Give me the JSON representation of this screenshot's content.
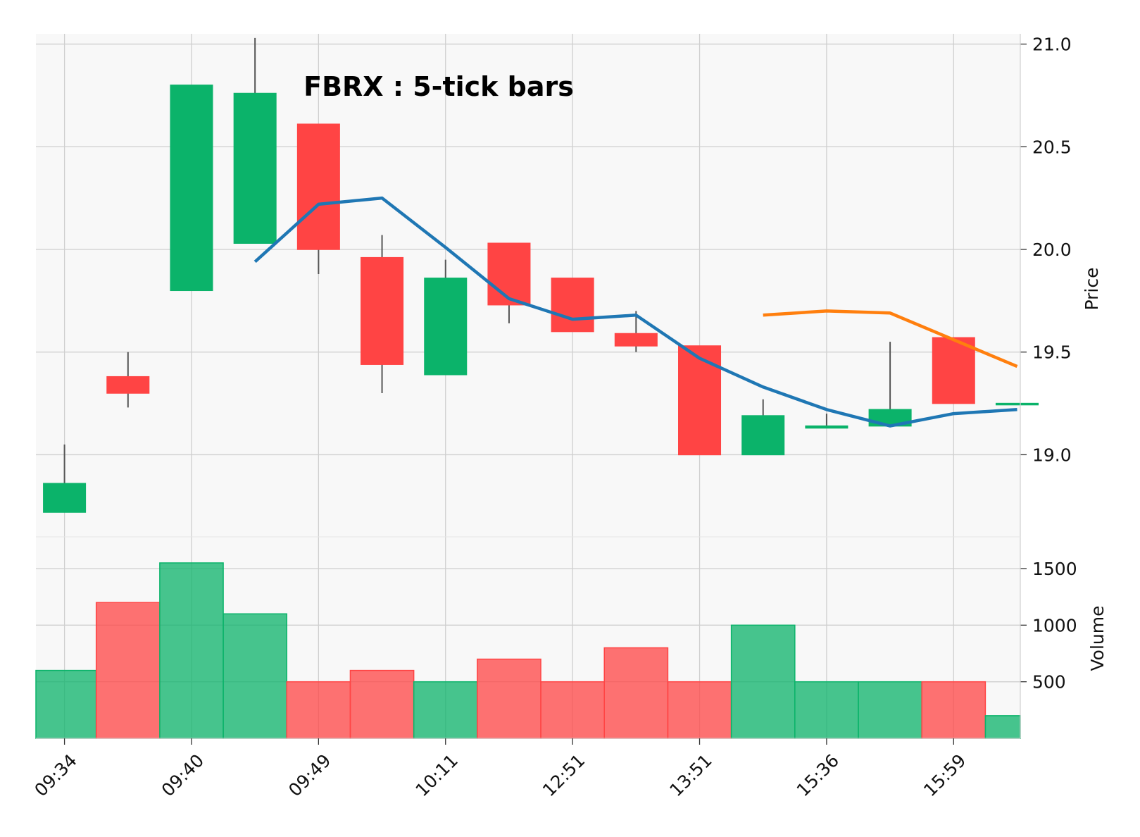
{
  "chart_data": {
    "type": "candlestick",
    "title": "FBRX : 5-tick bars",
    "ylabel": "Price",
    "ylabel_lower": "Volume",
    "x_tick_labels": [
      "09:34",
      "09:40",
      "09:49",
      "10:11",
      "12:51",
      "13:51",
      "15:36",
      "15:59"
    ],
    "x_tick_indices": [
      0,
      2,
      4,
      6,
      8,
      10,
      12,
      14
    ],
    "price_ylim": [
      18.6,
      21.05
    ],
    "price_ticks": [
      19.0,
      19.5,
      20.0,
      20.5,
      21.0
    ],
    "price_tick_labels": [
      "19.0",
      "19.5",
      "20.0",
      "20.5",
      "21.0"
    ],
    "volume_ylim": [
      0,
      1780
    ],
    "volume_ticks": [
      500,
      1000,
      1500
    ],
    "volume_tick_labels": [
      "500",
      "1000",
      "1500"
    ],
    "grid": true,
    "colors": {
      "up": "#0bb36a",
      "down": "#ff4444",
      "ma_short": "#1f77b4",
      "ma_long": "#ff7f0e",
      "grid": "#cfcfcf",
      "panel": "#f8f8f8"
    },
    "bars": [
      {
        "open": 18.72,
        "high": 19.05,
        "low": 18.72,
        "close": 18.86,
        "volume": 600
      },
      {
        "open": 19.38,
        "high": 19.5,
        "low": 19.23,
        "close": 19.3,
        "volume": 1200
      },
      {
        "open": 19.8,
        "high": 20.8,
        "low": 19.8,
        "close": 20.8,
        "volume": 1550
      },
      {
        "open": 20.03,
        "high": 21.03,
        "low": 20.03,
        "close": 20.76,
        "volume": 1100
      },
      {
        "open": 20.61,
        "high": 20.61,
        "low": 19.88,
        "close": 20.0,
        "volume": 500
      },
      {
        "open": 19.96,
        "high": 20.07,
        "low": 19.3,
        "close": 19.44,
        "volume": 600
      },
      {
        "open": 19.39,
        "high": 19.95,
        "low": 19.39,
        "close": 19.86,
        "volume": 500
      },
      {
        "open": 20.03,
        "high": 20.03,
        "low": 19.64,
        "close": 19.73,
        "volume": 700
      },
      {
        "open": 19.86,
        "high": 19.86,
        "low": 19.6,
        "close": 19.6,
        "volume": 500
      },
      {
        "open": 19.59,
        "high": 19.7,
        "low": 19.5,
        "close": 19.53,
        "volume": 800
      },
      {
        "open": 19.53,
        "high": 19.53,
        "low": 19.0,
        "close": 19.0,
        "volume": 500
      },
      {
        "open": 19.0,
        "high": 19.27,
        "low": 19.0,
        "close": 19.19,
        "volume": 1000
      },
      {
        "open": 19.13,
        "high": 19.2,
        "low": 19.13,
        "close": 19.14,
        "volume": 500
      },
      {
        "open": 19.14,
        "high": 19.55,
        "low": 19.14,
        "close": 19.22,
        "volume": 500
      },
      {
        "open": 19.57,
        "high": 19.57,
        "low": 19.25,
        "close": 19.25,
        "volume": 500
      },
      {
        "open": 19.25,
        "high": 19.25,
        "low": 19.25,
        "close": 19.25,
        "volume": 200
      }
    ],
    "ma_short": [
      null,
      null,
      null,
      19.94,
      20.22,
      20.25,
      20.01,
      19.76,
      19.66,
      19.68,
      19.47,
      19.33,
      19.22,
      19.14,
      19.2,
      19.22
    ],
    "ma_long": [
      null,
      null,
      null,
      null,
      null,
      null,
      null,
      null,
      null,
      null,
      null,
      19.68,
      19.7,
      19.69,
      19.56,
      19.43
    ]
  }
}
